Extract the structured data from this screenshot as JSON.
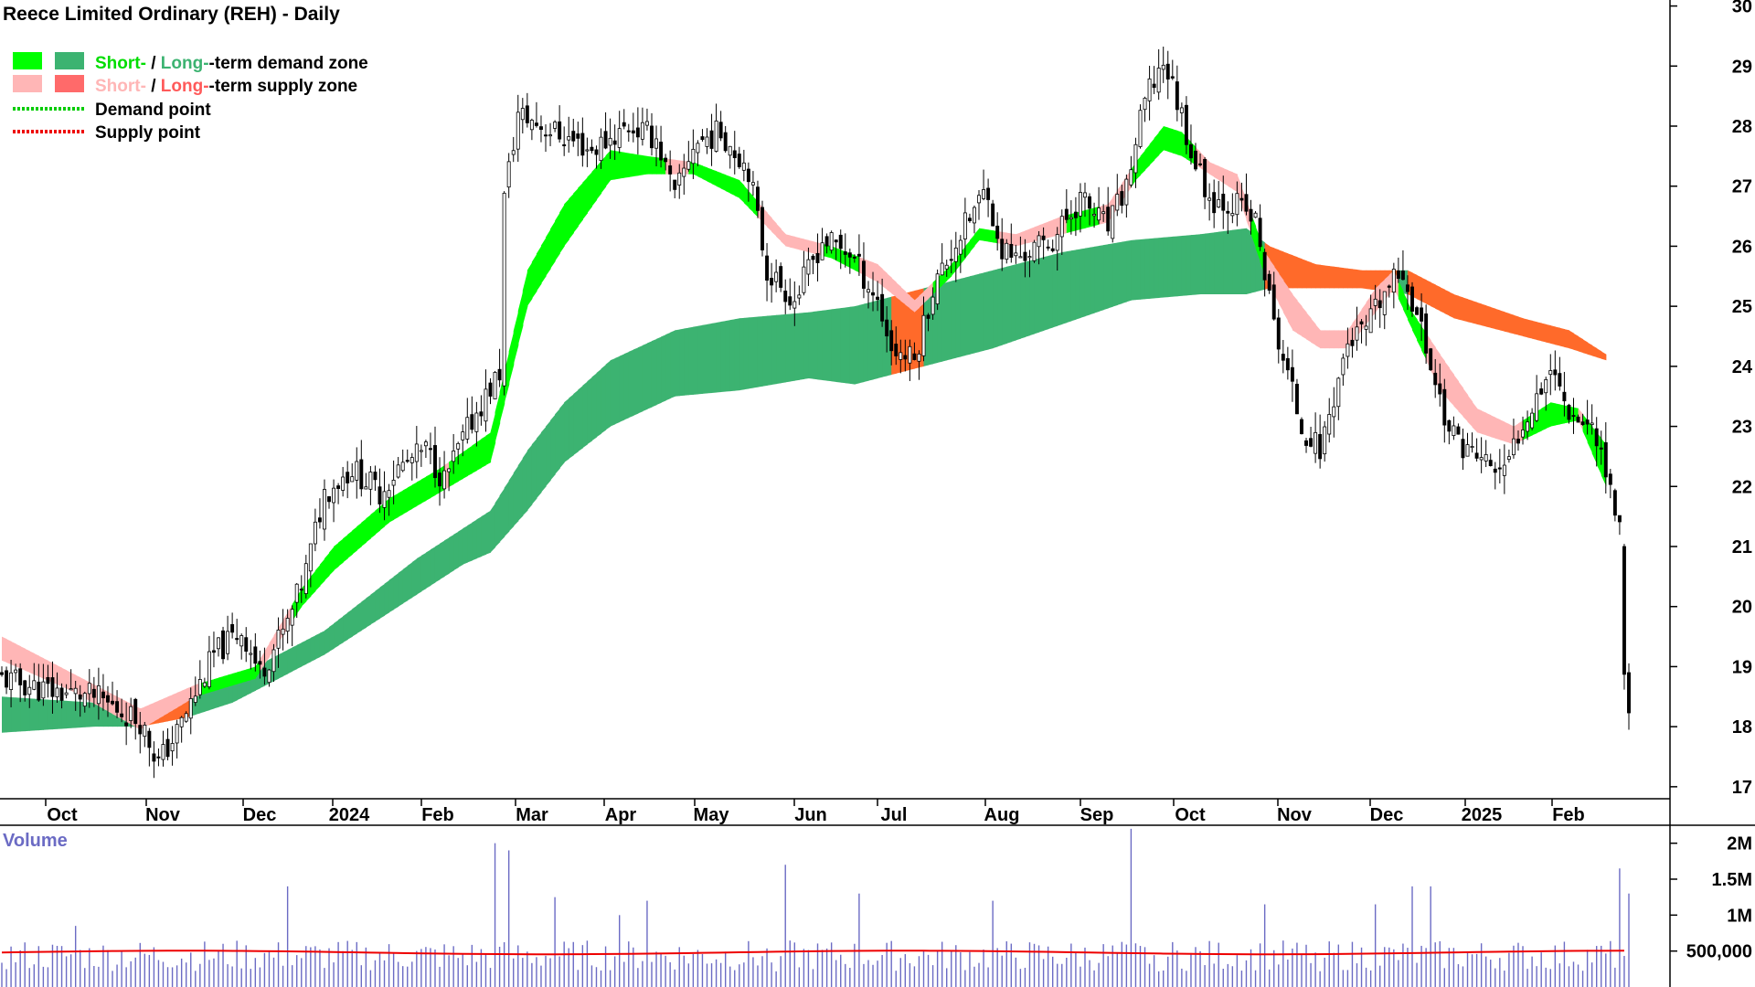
{
  "chart_data": {
    "type": "candlestick",
    "title": "Reece Limited Ordinary (REH) - Daily",
    "price_axis": {
      "ticks": [
        17,
        18,
        19,
        20,
        21,
        22,
        23,
        24,
        25,
        26,
        27,
        28,
        29,
        30
      ],
      "ylim": [
        16.8,
        30.1
      ]
    },
    "x_axis_labels": [
      "Oct",
      "Nov",
      "Dec",
      "2024",
      "Feb",
      "Mar",
      "Apr",
      "May",
      "Jun",
      "Jul",
      "Aug",
      "Sep",
      "Oct",
      "Nov",
      "Dec",
      "2025",
      "Feb"
    ],
    "legend": {
      "zone_row_short": "Short-",
      "zone_row_sep": " / ",
      "zone_row_long": "Long-",
      "demand_zone_suffix": "-term demand zone",
      "supply_zone_suffix": "-term supply zone",
      "demand_point": "Demand point",
      "supply_point": "Supply point"
    },
    "colors": {
      "short_demand": "#00ff00",
      "long_demand": "#3cb371",
      "short_supply": "#ffb6b6",
      "long_supply": "#ff6a2a",
      "demand_point": "#00cc00",
      "supply_point": "#ee0000",
      "volume_bar": "#6b6bc4",
      "volume_avg": "#ee0000"
    },
    "close_path": [
      [
        0,
        18.8
      ],
      [
        10,
        18.6
      ],
      [
        20,
        18.5
      ],
      [
        30,
        18.1
      ],
      [
        34,
        17.4
      ],
      [
        38,
        17.9
      ],
      [
        46,
        19.2
      ],
      [
        52,
        19.6
      ],
      [
        56,
        18.9
      ],
      [
        62,
        19.7
      ],
      [
        66,
        20.6
      ],
      [
        70,
        21.9
      ],
      [
        76,
        22.3
      ],
      [
        82,
        21.9
      ],
      [
        86,
        22.3
      ],
      [
        92,
        22.6
      ],
      [
        96,
        22.1
      ],
      [
        102,
        23.1
      ],
      [
        108,
        23.9
      ],
      [
        109,
        26.8
      ],
      [
        112,
        28.2
      ],
      [
        120,
        27.9
      ],
      [
        128,
        27.6
      ],
      [
        136,
        28.0
      ],
      [
        142,
        27.8
      ],
      [
        146,
        26.8
      ],
      [
        150,
        27.7
      ],
      [
        156,
        27.9
      ],
      [
        162,
        27.3
      ],
      [
        166,
        25.6
      ],
      [
        172,
        25.1
      ],
      [
        178,
        26.1
      ],
      [
        184,
        25.9
      ],
      [
        190,
        25.1
      ],
      [
        193,
        24.3
      ],
      [
        198,
        24.1
      ],
      [
        202,
        25.3
      ],
      [
        208,
        26.2
      ],
      [
        214,
        27.0
      ],
      [
        216,
        26.0
      ],
      [
        220,
        25.8
      ],
      [
        228,
        26.1
      ],
      [
        234,
        26.8
      ],
      [
        240,
        26.3
      ],
      [
        244,
        27.0
      ],
      [
        248,
        28.4
      ],
      [
        252,
        29.1
      ],
      [
        256,
        28.2
      ],
      [
        258,
        27.6
      ],
      [
        262,
        26.8
      ],
      [
        268,
        26.7
      ],
      [
        272,
        26.4
      ],
      [
        276,
        24.7
      ],
      [
        282,
        23.0
      ],
      [
        286,
        22.6
      ],
      [
        292,
        24.4
      ],
      [
        296,
        24.6
      ],
      [
        300,
        25.2
      ],
      [
        304,
        25.6
      ],
      [
        308,
        24.6
      ],
      [
        314,
        22.9
      ],
      [
        320,
        22.5
      ],
      [
        326,
        22.2
      ],
      [
        330,
        23.1
      ],
      [
        336,
        24.0
      ],
      [
        340,
        23.3
      ],
      [
        346,
        22.9
      ],
      [
        350,
        21.6
      ],
      [
        351,
        21.3
      ],
      [
        352,
        19.0
      ],
      [
        353,
        18.3
      ]
    ],
    "series": [
      {
        "name": "Short-term zone",
        "band": [
          [
            0,
            19.5,
            19.1
          ],
          [
            15,
            18.9,
            18.6
          ],
          [
            30,
            18.3,
            17.95
          ],
          [
            42,
            18.7,
            18.5
          ],
          [
            55,
            19.0,
            18.8
          ],
          [
            65,
            20.3,
            20.0
          ],
          [
            72,
            21.0,
            20.6
          ],
          [
            84,
            21.8,
            21.4
          ],
          [
            95,
            22.3,
            21.9
          ],
          [
            106,
            22.9,
            22.4
          ],
          [
            114,
            25.6,
            25.0
          ],
          [
            122,
            26.7,
            26.0
          ],
          [
            132,
            27.6,
            27.1
          ],
          [
            140,
            27.5,
            27.2
          ],
          [
            150,
            27.4,
            27.2
          ],
          [
            160,
            27.1,
            26.8
          ],
          [
            170,
            26.2,
            26.0
          ],
          [
            180,
            26.0,
            25.8
          ],
          [
            190,
            25.7,
            25.4
          ],
          [
            198,
            25.1,
            24.9
          ],
          [
            206,
            25.7,
            25.5
          ],
          [
            212,
            26.3,
            26.1
          ],
          [
            220,
            26.2,
            26.0
          ],
          [
            230,
            26.5,
            26.2
          ],
          [
            240,
            26.7,
            26.4
          ],
          [
            246,
            27.4,
            27.1
          ],
          [
            252,
            28.0,
            27.6
          ],
          [
            256,
            27.9,
            27.5
          ],
          [
            262,
            27.4,
            27.2
          ],
          [
            268,
            27.2,
            26.9
          ],
          [
            274,
            25.9,
            25.5
          ],
          [
            280,
            25.2,
            24.6
          ],
          [
            286,
            24.6,
            24.3
          ],
          [
            292,
            24.6,
            24.3
          ],
          [
            298,
            25.3,
            24.9
          ],
          [
            302,
            25.6,
            25.3
          ],
          [
            306,
            24.9,
            24.6
          ],
          [
            312,
            24.2,
            23.6
          ],
          [
            320,
            23.3,
            22.9
          ],
          [
            328,
            23.0,
            22.7
          ],
          [
            336,
            23.4,
            23.0
          ],
          [
            342,
            23.3,
            23.1
          ],
          [
            348,
            22.7,
            22.0
          ]
        ]
      },
      {
        "name": "Long-term zone",
        "band": [
          [
            0,
            18.5,
            17.9
          ],
          [
            20,
            18.4,
            18.0
          ],
          [
            30,
            18.3,
            18.0
          ],
          [
            40,
            18.5,
            18.15
          ],
          [
            50,
            18.8,
            18.4
          ],
          [
            60,
            19.2,
            18.8
          ],
          [
            70,
            19.6,
            19.2
          ],
          [
            80,
            20.2,
            19.7
          ],
          [
            90,
            20.8,
            20.2
          ],
          [
            100,
            21.3,
            20.7
          ],
          [
            106,
            21.6,
            20.9
          ],
          [
            114,
            22.6,
            21.6
          ],
          [
            122,
            23.4,
            22.4
          ],
          [
            132,
            24.1,
            23.0
          ],
          [
            146,
            24.6,
            23.5
          ],
          [
            160,
            24.8,
            23.6
          ],
          [
            175,
            24.9,
            23.8
          ],
          [
            185,
            25.0,
            23.7
          ],
          [
            200,
            25.3,
            24.0
          ],
          [
            215,
            25.6,
            24.3
          ],
          [
            230,
            25.9,
            24.7
          ],
          [
            245,
            26.1,
            25.1
          ],
          [
            260,
            26.2,
            25.2
          ],
          [
            270,
            26.3,
            25.2
          ],
          [
            275,
            26.0,
            25.3
          ],
          [
            285,
            25.7,
            25.3
          ],
          [
            295,
            25.6,
            25.3
          ],
          [
            305,
            25.6,
            25.2
          ],
          [
            315,
            25.2,
            24.8
          ],
          [
            330,
            24.8,
            24.5
          ],
          [
            340,
            24.6,
            24.3
          ],
          [
            348,
            24.2,
            24.1
          ]
        ]
      }
    ],
    "volume": {
      "label": "Volume",
      "ticks": [
        {
          "label": "500,000",
          "value": 500000
        },
        {
          "label": "1M",
          "value": 1000000
        },
        {
          "label": "1.5M",
          "value": 1500000
        },
        {
          "label": "2M",
          "value": 2000000
        }
      ],
      "ylim": [
        0,
        2250000
      ],
      "average": 480000,
      "spikes": [
        [
          16,
          850000
        ],
        [
          62,
          1400000
        ],
        [
          107,
          2000000
        ],
        [
          110,
          1900000
        ],
        [
          120,
          1250000
        ],
        [
          134,
          1000000
        ],
        [
          140,
          1200000
        ],
        [
          170,
          1700000
        ],
        [
          186,
          1300000
        ],
        [
          215,
          1200000
        ],
        [
          245,
          2200000
        ],
        [
          274,
          1150000
        ],
        [
          298,
          1150000
        ],
        [
          306,
          1400000
        ],
        [
          310,
          1400000
        ],
        [
          351,
          1650000
        ],
        [
          353,
          1300000
        ]
      ]
    }
  }
}
